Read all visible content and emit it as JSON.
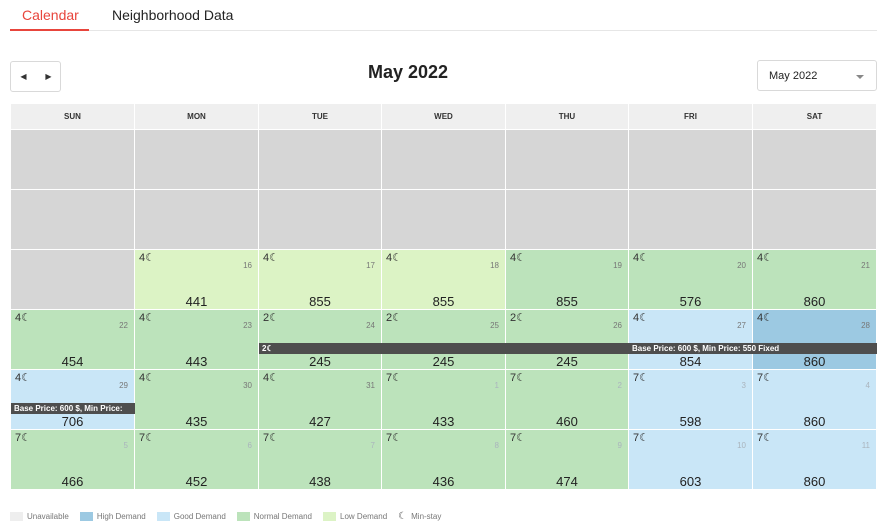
{
  "tabs": [
    {
      "label": "Calendar",
      "active": true
    },
    {
      "label": "Neighborhood Data",
      "active": false
    }
  ],
  "nav": {
    "prev_icon": "◀",
    "next_icon": "▶"
  },
  "title": "May 2022",
  "month_select": {
    "value": "May 2022"
  },
  "weekdays": [
    "SUN",
    "MON",
    "TUE",
    "WED",
    "THU",
    "FRI",
    "SAT"
  ],
  "status_colors": {
    "unavail": "#d6d6d6",
    "low": "#dcf3c5",
    "normal": "#bce3bb",
    "good": "#c9e6f7",
    "high": "#9cc9e2"
  },
  "days": [
    {
      "status": "unavail"
    },
    {
      "status": "unavail"
    },
    {
      "status": "unavail"
    },
    {
      "status": "unavail"
    },
    {
      "status": "unavail"
    },
    {
      "status": "unavail"
    },
    {
      "status": "unavail"
    },
    {
      "status": "unavail"
    },
    {
      "status": "unavail"
    },
    {
      "status": "unavail"
    },
    {
      "status": "unavail"
    },
    {
      "status": "unavail"
    },
    {
      "status": "unavail"
    },
    {
      "status": "unavail"
    },
    {
      "status": "unavail"
    },
    {
      "status": "low",
      "min": "4☾",
      "date": "16",
      "price": "441"
    },
    {
      "status": "low",
      "min": "4☾",
      "date": "17",
      "price": "855"
    },
    {
      "status": "low",
      "min": "4☾",
      "date": "18",
      "price": "855"
    },
    {
      "status": "normal",
      "min": "4☾",
      "date": "19",
      "price": "855"
    },
    {
      "status": "normal",
      "min": "4☾",
      "date": "20",
      "price": "576"
    },
    {
      "status": "normal",
      "min": "4☾",
      "date": "21",
      "price": "860"
    },
    {
      "status": "normal",
      "min": "4☾",
      "date": "22",
      "price": "454"
    },
    {
      "status": "normal",
      "min": "4☾",
      "date": "23",
      "price": "443"
    },
    {
      "status": "normal",
      "min": "2☾",
      "date": "24",
      "price": "245"
    },
    {
      "status": "normal",
      "min": "2☾",
      "date": "25",
      "price": "245"
    },
    {
      "status": "normal",
      "min": "2☾",
      "date": "26",
      "price": "245"
    },
    {
      "status": "good",
      "min": "4☾",
      "date": "27",
      "price": "854"
    },
    {
      "status": "high",
      "min": "4☾",
      "date": "28",
      "price": "860"
    },
    {
      "status": "good",
      "min": "4☾",
      "date": "29",
      "price": "706"
    },
    {
      "status": "normal",
      "min": "4☾",
      "date": "30",
      "price": "435"
    },
    {
      "status": "normal",
      "min": "4☾",
      "date": "31",
      "price": "427"
    },
    {
      "status": "normal",
      "min": "7☾",
      "date": "1",
      "price": "433",
      "faded": true
    },
    {
      "status": "normal",
      "min": "7☾",
      "date": "2",
      "price": "460",
      "faded": true
    },
    {
      "status": "good",
      "min": "7☾",
      "date": "3",
      "price": "598",
      "faded": true
    },
    {
      "status": "good",
      "min": "7☾",
      "date": "4",
      "price": "860",
      "faded": true
    },
    {
      "status": "normal",
      "min": "7☾",
      "date": "5",
      "price": "466",
      "faded": true
    },
    {
      "status": "normal",
      "min": "7☾",
      "date": "6",
      "price": "452",
      "faded": true
    },
    {
      "status": "normal",
      "min": "7☾",
      "date": "7",
      "price": "438",
      "faded": true
    },
    {
      "status": "normal",
      "min": "7☾",
      "date": "8",
      "price": "436",
      "faded": true
    },
    {
      "status": "normal",
      "min": "7☾",
      "date": "9",
      "price": "474",
      "faded": true
    },
    {
      "status": "good",
      "min": "7☾",
      "date": "10",
      "price": "603",
      "faded": true
    },
    {
      "status": "good",
      "min": "7☾",
      "date": "11",
      "price": "860",
      "faded": true
    }
  ],
  "bars": [
    {
      "text": "2☾",
      "row": 3,
      "col": 2,
      "span": 3
    },
    {
      "text": "Base Price: 600 $, Min Price: 550 Fixed",
      "row": 3,
      "col": 5,
      "span": 2
    },
    {
      "text": "Base Price: 600 $, Min Price:",
      "row": 4,
      "col": 0,
      "span": 1
    }
  ],
  "legend": [
    {
      "label": "Unavailable",
      "color": "#eeeeee",
      "swatch": true
    },
    {
      "label": "High Demand",
      "color": "#9cc9e2",
      "swatch": true
    },
    {
      "label": "Good Demand",
      "color": "#c9e6f7",
      "swatch": true
    },
    {
      "label": "Normal Demand",
      "color": "#bce3bb",
      "swatch": true
    },
    {
      "label": "Low Demand",
      "color": "#dcf3c5",
      "swatch": true
    },
    {
      "label": "Min-stay",
      "icon": "☾",
      "swatch": false
    }
  ]
}
